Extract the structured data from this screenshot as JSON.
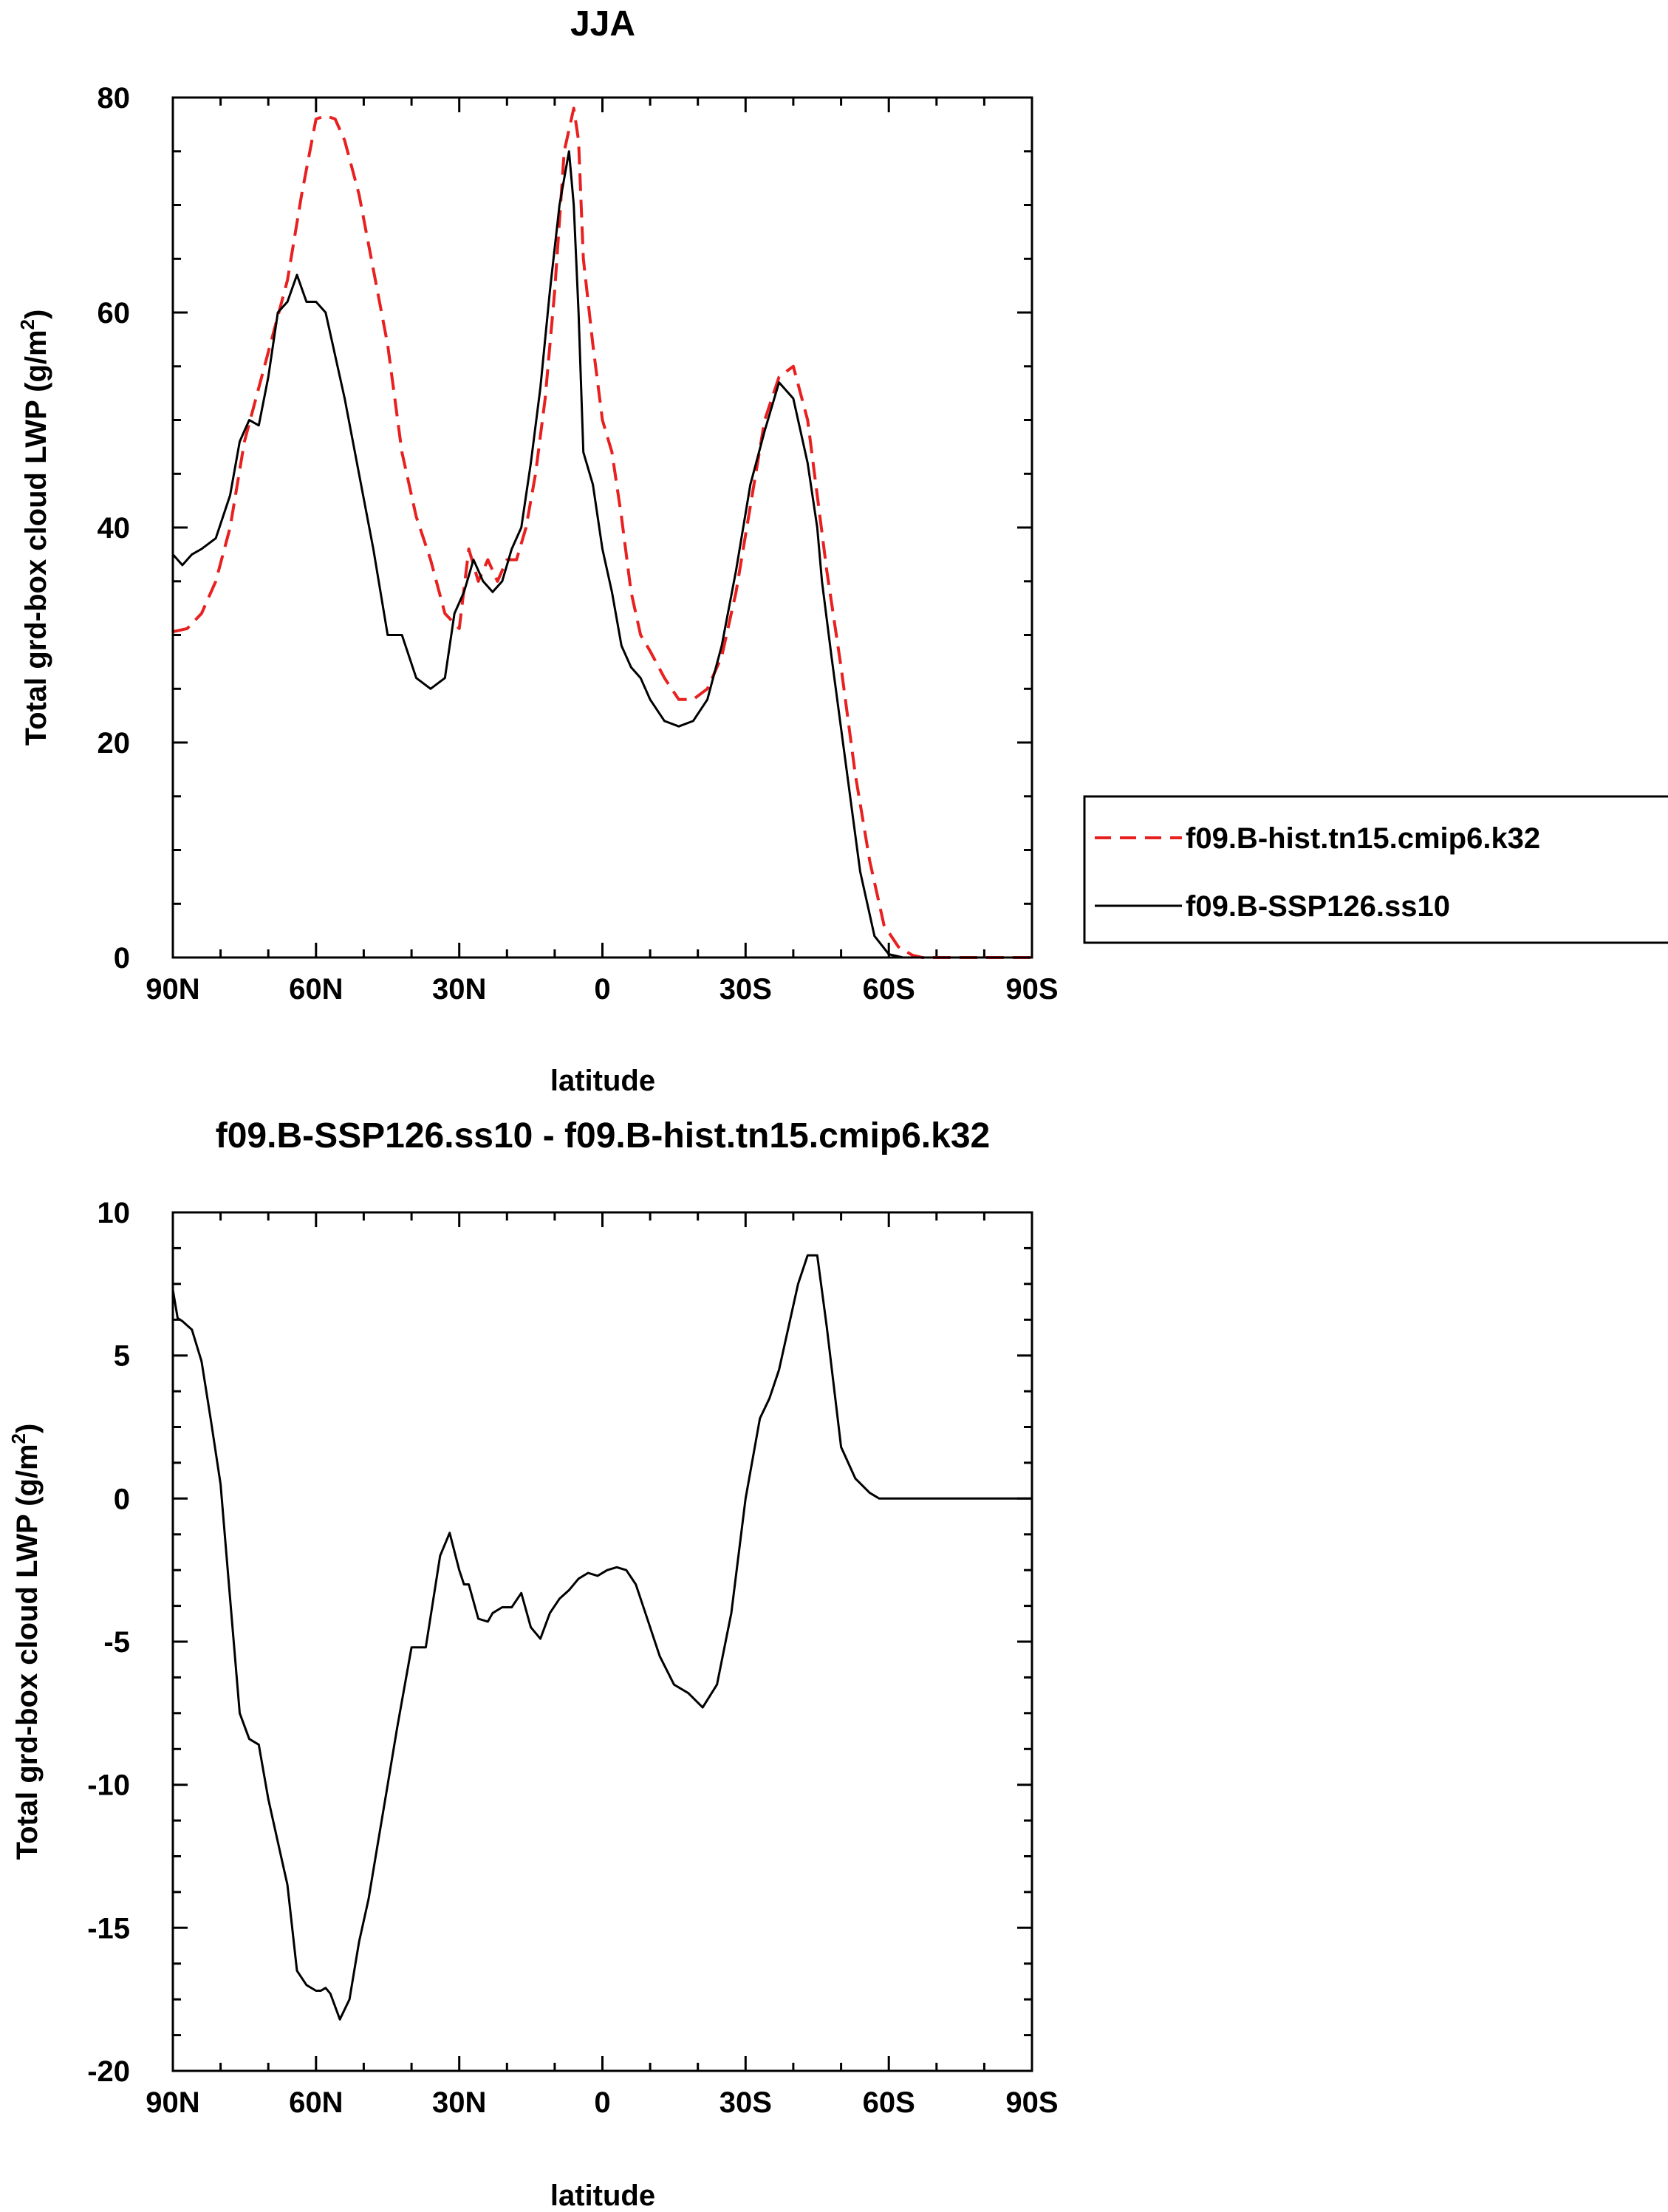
{
  "chart_data": [
    {
      "type": "line",
      "title": "JJA",
      "xlabel": "latitude",
      "ylabel": "Total grd-box cloud LWP (g/m²)",
      "ylabel_main": "Total grd-box cloud LWP (g/m",
      "ylabel_sup": "2",
      "ylabel_tail": ")",
      "xlim": [
        90,
        -90
      ],
      "ylim": [
        0,
        80
      ],
      "xticks": [
        90,
        60,
        30,
        0,
        -30,
        -60,
        -90
      ],
      "xtick_labels": [
        "90N",
        "60N",
        "30N",
        "0",
        "30S",
        "60S",
        "90S"
      ],
      "yticks": [
        0,
        20,
        40,
        60,
        80
      ],
      "ytick_labels": [
        "0",
        "20",
        "40",
        "60",
        "80"
      ],
      "legend_placement": "right",
      "series": [
        {
          "name": "f09.B-hist.tn15.cmip6.k32",
          "color": "#e8201f",
          "dash": "dashed",
          "x": [
            90,
            87,
            84,
            81,
            78,
            75,
            72,
            69,
            66,
            63,
            60,
            58,
            56,
            54,
            51,
            48,
            45,
            42,
            39,
            36,
            33,
            30,
            28,
            26,
            24,
            22,
            20,
            18,
            16,
            14,
            12,
            10,
            8,
            6,
            5,
            4,
            2,
            0,
            -2,
            -4,
            -6,
            -8,
            -10,
            -13,
            -16,
            -19,
            -22,
            -25,
            -28,
            -31,
            -34,
            -37,
            -40,
            -43,
            -45,
            -47,
            -50,
            -53,
            -56,
            -59,
            -62,
            -65,
            -67,
            -69,
            -72,
            -75,
            -78,
            -81,
            -84,
            -87,
            -90
          ],
          "y": [
            30.3,
            30.6,
            32,
            35,
            40,
            48,
            53,
            58,
            63,
            71,
            78,
            78.3,
            78,
            76,
            71,
            64,
            57,
            47,
            41,
            37,
            32,
            30.6,
            38,
            35,
            37,
            35,
            37,
            37,
            40,
            45,
            52,
            62,
            75,
            79,
            76,
            65,
            57,
            50,
            47,
            41,
            34,
            30,
            28.5,
            26,
            24,
            24,
            25,
            28,
            34,
            42,
            50,
            54,
            55,
            50,
            43,
            36,
            27,
            17,
            9,
            3,
            1,
            0.2,
            0,
            0,
            0,
            0,
            0,
            0,
            0,
            0,
            0
          ]
        },
        {
          "name": "f09.B-SSP126.ss10",
          "color": "#000000",
          "dash": "solid",
          "x": [
            90,
            88,
            86,
            84,
            81,
            78,
            76,
            74,
            72,
            70,
            68,
            66,
            64,
            62,
            60,
            58,
            56,
            54,
            51,
            48,
            45,
            42,
            39,
            36,
            33,
            31,
            29,
            27,
            25,
            23,
            21,
            19,
            17,
            15,
            13,
            11,
            9,
            7,
            6,
            5,
            4,
            2,
            0,
            -2,
            -4,
            -6,
            -8,
            -10,
            -13,
            -16,
            -19,
            -22,
            -25,
            -28,
            -31,
            -34,
            -37,
            -40,
            -43,
            -45,
            -46,
            -48,
            -51,
            -54,
            -57,
            -60,
            -63,
            -66,
            -69,
            -72,
            -75,
            -78,
            -81,
            -84,
            -87,
            -90
          ],
          "y": [
            37.5,
            36.5,
            37.5,
            38,
            39,
            43,
            48,
            50,
            49.5,
            54,
            60,
            61,
            63.5,
            61,
            61,
            60,
            56,
            52,
            45,
            38,
            30,
            30,
            26,
            25,
            26,
            32,
            34,
            37,
            35,
            34,
            35,
            38,
            40,
            46,
            53,
            62,
            70,
            75,
            70,
            60,
            47,
            44,
            38,
            34,
            29,
            27,
            26,
            24,
            22,
            21.5,
            22,
            24,
            29,
            36,
            44,
            49,
            53.5,
            52,
            46,
            40,
            35,
            28,
            18,
            8,
            2,
            0.3,
            0,
            0,
            0,
            0,
            0,
            0,
            0,
            0,
            0,
            0
          ]
        }
      ]
    },
    {
      "type": "line",
      "title": "f09.B-SSP126.ss10 - f09.B-hist.tn15.cmip6.k32",
      "xlabel": "latitude",
      "ylabel": "Total grd-box cloud LWP (g/m²)",
      "ylabel_main": "Total grd-box cloud LWP (g/m",
      "ylabel_sup": "2",
      "ylabel_tail": ")",
      "xlim": [
        90,
        -90
      ],
      "ylim": [
        -20,
        10
      ],
      "xticks": [
        90,
        60,
        30,
        0,
        -30,
        -60,
        -90
      ],
      "xtick_labels": [
        "90N",
        "60N",
        "30N",
        "0",
        "30S",
        "60S",
        "90S"
      ],
      "yticks": [
        -20,
        -15,
        -10,
        -5,
        0,
        5,
        10
      ],
      "ytick_labels": [
        "-20",
        "-15",
        "-10",
        "-5",
        "0",
        "5",
        "10"
      ],
      "series": [
        {
          "color": "#000000",
          "x": [
            90,
            89,
            88,
            86,
            84,
            82,
            80,
            78,
            76,
            74,
            72,
            70,
            68,
            66,
            64,
            62,
            60,
            59,
            58,
            57,
            55,
            53,
            51,
            49,
            47,
            45,
            43,
            40,
            37,
            34,
            32,
            30,
            29,
            28,
            26,
            24,
            23,
            21,
            19,
            17,
            15,
            13,
            11,
            9,
            7,
            5,
            3,
            1,
            -1,
            -3,
            -5,
            -7,
            -9,
            -12,
            -15,
            -18,
            -21,
            -24,
            -27,
            -30,
            -33,
            -35,
            -37,
            -39,
            -41,
            -43,
            -45,
            -47,
            -50,
            -53,
            -56,
            -58,
            -60,
            -62,
            -64,
            -66,
            -68,
            -70,
            -72,
            -75,
            -78,
            -81,
            -84,
            -87,
            -90
          ],
          "y": [
            7.3,
            6.3,
            6.2,
            5.9,
            4.8,
            2.7,
            0.5,
            -3.5,
            -7.5,
            -8.4,
            -8.6,
            -10.5,
            -12,
            -13.5,
            -16.5,
            -17,
            -17.2,
            -17.2,
            -17.1,
            -17.3,
            -18.2,
            -17.5,
            -15.5,
            -14,
            -12,
            -10,
            -8,
            -5.2,
            -5.2,
            -2,
            -1.2,
            -2.5,
            -3,
            -3,
            -4.2,
            -4.3,
            -4,
            -3.8,
            -3.8,
            -3.3,
            -4.5,
            -4.9,
            -4,
            -3.5,
            -3.2,
            -2.8,
            -2.6,
            -2.7,
            -2.5,
            -2.4,
            -2.5,
            -3,
            -4,
            -5.5,
            -6.5,
            -6.8,
            -7.3,
            -6.5,
            -4,
            0,
            2.8,
            3.5,
            4.5,
            6,
            7.5,
            8.5,
            8.5,
            6,
            1.8,
            0.7,
            0.2,
            0,
            0,
            0,
            0,
            0,
            0,
            0,
            0,
            0,
            0,
            0,
            0,
            0,
            0
          ]
        }
      ]
    }
  ]
}
